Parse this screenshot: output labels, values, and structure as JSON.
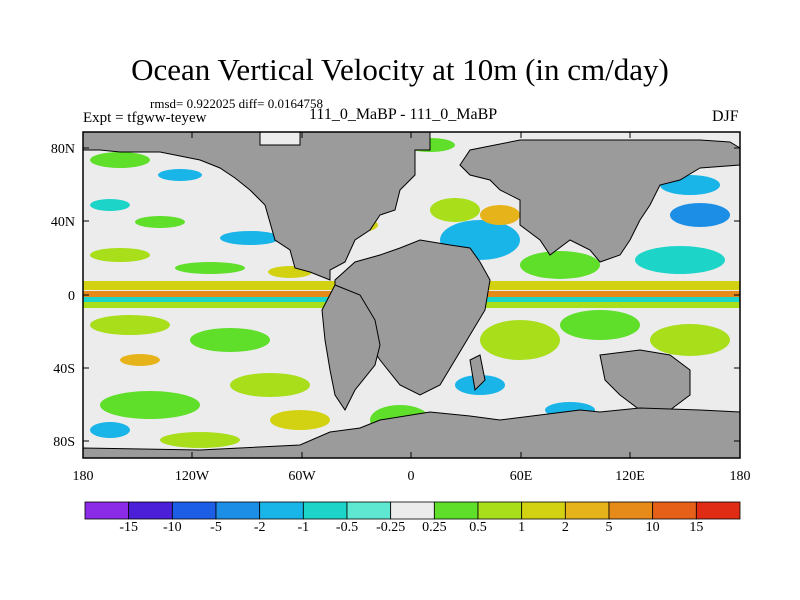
{
  "header": {
    "title": "Ocean Vertical Velocity at 10m (in cm/day)",
    "stats": "rmsd= 0.922025  diff= 0.0164758",
    "expt": "Expt = tfgww-teyew",
    "runs": "111_0_MaBP - 111_0_MaBP",
    "season": "DJF"
  },
  "axes": {
    "lat_labels": [
      "80N",
      "40N",
      "0",
      "40S",
      "80S"
    ],
    "lon_labels": [
      "180",
      "120W",
      "60W",
      "0",
      "60E",
      "120E",
      "180"
    ]
  },
  "colorbar": {
    "labels": [
      "-15",
      "-10",
      "-5",
      "-2",
      "-1",
      "-0.5",
      "-0.25",
      "0.25",
      "0.5",
      "1",
      "2",
      "5",
      "10",
      "15"
    ],
    "colors": [
      "#8b2be8",
      "#4b1fd8",
      "#1d5ee6",
      "#1d8ee6",
      "#19b4e8",
      "#1dd4c8",
      "#5ee8d2",
      "#ececec",
      "#5fde2a",
      "#a8de1a",
      "#d2d212",
      "#e6b41a",
      "#e68a1a",
      "#e6601a",
      "#e02c14"
    ]
  },
  "map": {
    "land_color": "#9b9b9b",
    "ocean_neutral_color": "#ececec"
  }
}
